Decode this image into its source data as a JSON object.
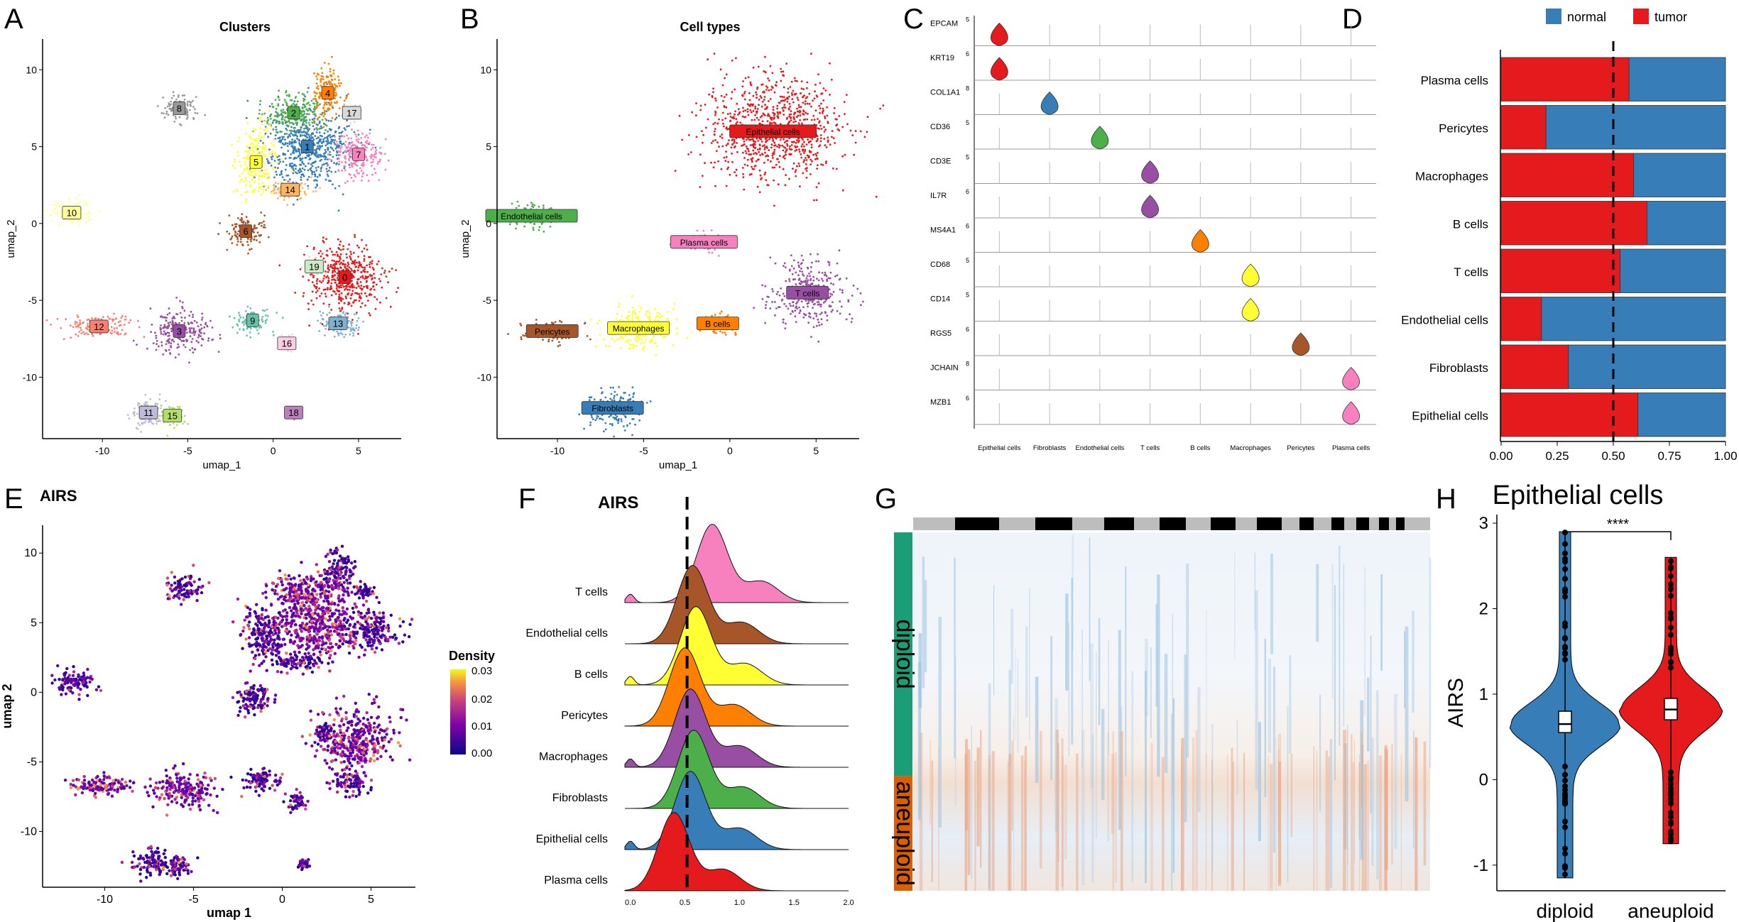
{
  "figure": {
    "panel_letters": [
      "A",
      "B",
      "C",
      "D",
      "E",
      "F",
      "G",
      "H"
    ]
  },
  "chart_data": [
    {
      "panel": "A",
      "type": "scatter",
      "title": "Clusters",
      "xlabel": "umap_1",
      "ylabel": "umap_2",
      "xlim": [
        -13.5,
        7.5
      ],
      "ylim": [
        -14,
        12
      ],
      "xticks": [
        -10,
        -5,
        0,
        5
      ],
      "yticks": [
        -10,
        -5,
        0,
        5,
        10
      ],
      "clusters": [
        {
          "label": "0",
          "color": "#e41a1c",
          "x": 4.2,
          "y": -3.5,
          "rx": 2.2,
          "ry": 2.2
        },
        {
          "label": "1",
          "color": "#377eb8",
          "x": 2.0,
          "y": 5.0,
          "rx": 2.5,
          "ry": 2.6
        },
        {
          "label": "2",
          "color": "#4daf4a",
          "x": 1.2,
          "y": 7.2,
          "rx": 1.8,
          "ry": 1.2
        },
        {
          "label": "3",
          "color": "#984ea3",
          "x": -5.5,
          "y": -7.0,
          "rx": 1.8,
          "ry": 1.3
        },
        {
          "label": "4",
          "color": "#ff7f00",
          "x": 3.2,
          "y": 8.5,
          "rx": 0.9,
          "ry": 1.6
        },
        {
          "label": "5",
          "color": "#ffff33",
          "x": -1.0,
          "y": 4.0,
          "rx": 1.2,
          "ry": 2.0
        },
        {
          "label": "6",
          "color": "#a65628",
          "x": -1.6,
          "y": -0.5,
          "rx": 1.1,
          "ry": 1.0
        },
        {
          "label": "7",
          "color": "#f781bf",
          "x": 5.0,
          "y": 4.5,
          "rx": 1.5,
          "ry": 1.4
        },
        {
          "label": "8",
          "color": "#999999",
          "x": -5.5,
          "y": 7.5,
          "rx": 1.0,
          "ry": 0.9
        },
        {
          "label": "9",
          "color": "#66c2a5",
          "x": -1.2,
          "y": -6.3,
          "rx": 1.1,
          "ry": 0.8
        },
        {
          "label": "10",
          "color": "#ffff99",
          "x": -11.8,
          "y": 0.7,
          "rx": 1.2,
          "ry": 0.8
        },
        {
          "label": "11",
          "color": "#bebada",
          "x": -7.3,
          "y": -12.3,
          "rx": 1.0,
          "ry": 0.9
        },
        {
          "label": "12",
          "color": "#fb8072",
          "x": -10.2,
          "y": -6.7,
          "rx": 2.0,
          "ry": 0.7
        },
        {
          "label": "13",
          "color": "#80b1d3",
          "x": 3.8,
          "y": -6.5,
          "rx": 1.1,
          "ry": 0.8
        },
        {
          "label": "14",
          "color": "#fdb462",
          "x": 1.0,
          "y": 2.2,
          "rx": 1.2,
          "ry": 0.6
        },
        {
          "label": "15",
          "color": "#b3de69",
          "x": -5.9,
          "y": -12.5,
          "rx": 0.8,
          "ry": 0.7
        },
        {
          "label": "16",
          "color": "#fccde5",
          "x": 0.8,
          "y": -7.8,
          "rx": 0.5,
          "ry": 0.6
        },
        {
          "label": "17",
          "color": "#d9d9d9",
          "x": 4.6,
          "y": 7.2,
          "rx": 0.6,
          "ry": 0.5
        },
        {
          "label": "18",
          "color": "#bc80bd",
          "x": 1.2,
          "y": -12.3,
          "rx": 0.3,
          "ry": 0.3
        },
        {
          "label": "19",
          "color": "#ccebc5",
          "x": 2.4,
          "y": -2.8,
          "rx": 0.6,
          "ry": 0.6
        }
      ]
    },
    {
      "panel": "B",
      "type": "scatter",
      "title": "Cell types",
      "xlabel": "umap_1",
      "ylabel": "umap_2",
      "xlim": [
        -13.5,
        7.5
      ],
      "ylim": [
        -14,
        12
      ],
      "xticks": [
        -10,
        -5,
        0,
        5
      ],
      "yticks": [
        -10,
        -5,
        0,
        5,
        10
      ],
      "clusters": [
        {
          "label": "Epithelial cells",
          "color": "#e41a1c",
          "x": 2.5,
          "y": 6.0,
          "rx": 4.0,
          "ry": 3.5
        },
        {
          "label": "Endothelial cells",
          "color": "#4daf4a",
          "x": -11.5,
          "y": 0.5,
          "rx": 1.3,
          "ry": 1.0
        },
        {
          "label": "Plasma cells",
          "color": "#f781bf",
          "x": -1.5,
          "y": -1.2,
          "rx": 1.3,
          "ry": 0.6
        },
        {
          "label": "T cells",
          "color": "#984ea3",
          "x": 4.5,
          "y": -4.5,
          "rx": 2.2,
          "ry": 2.2
        },
        {
          "label": "B cells",
          "color": "#ff7f00",
          "x": -0.7,
          "y": -6.5,
          "rx": 1.0,
          "ry": 0.8
        },
        {
          "label": "Macrophages",
          "color": "#ffff33",
          "x": -5.3,
          "y": -6.8,
          "rx": 2.2,
          "ry": 1.4
        },
        {
          "label": "Pericytes",
          "color": "#a65628",
          "x": -10.3,
          "y": -7.0,
          "rx": 1.8,
          "ry": 0.7
        },
        {
          "label": "Fibroblasts",
          "color": "#377eb8",
          "x": -6.8,
          "y": -12.0,
          "rx": 1.6,
          "ry": 1.3
        }
      ]
    },
    {
      "panel": "C",
      "type": "violin",
      "genes": [
        "EPCAM",
        "KRT19",
        "COL1A1",
        "CD36",
        "CD3E",
        "IL7R",
        "MS4A1",
        "CD68",
        "CD14",
        "RGS5",
        "JCHAIN",
        "MZB1"
      ],
      "gene_max": [
        5,
        6,
        8,
        5,
        5,
        6,
        6,
        5,
        5,
        6,
        8,
        6
      ],
      "cell_types": [
        "Epithelial cells",
        "Fibroblasts",
        "Endothelial cells",
        "T cells",
        "B cells",
        "Macrophages",
        "Pericytes",
        "Plasma cells"
      ],
      "gene_colors": [
        "#e41a1c",
        "#e41a1c",
        "#377eb8",
        "#4daf4a",
        "#984ea3",
        "#984ea3",
        "#ff7f00",
        "#ffff33",
        "#ffff33",
        "#a65628",
        "#f781bf",
        "#f781bf"
      ],
      "expressing_column": [
        0,
        0,
        1,
        2,
        3,
        3,
        4,
        5,
        5,
        6,
        7,
        7
      ]
    },
    {
      "panel": "D",
      "type": "bar",
      "orientation": "horizontal",
      "stacked": true,
      "categories": [
        "Plasma cells",
        "Pericytes",
        "Macrophages",
        "B cells",
        "T cells",
        "Endothelial cells",
        "Fibroblasts",
        "Epithelial cells"
      ],
      "series": [
        {
          "name": "tumor",
          "color": "#e41a1c",
          "values": [
            0.57,
            0.2,
            0.59,
            0.65,
            0.53,
            0.18,
            0.3,
            0.61
          ]
        },
        {
          "name": "normal",
          "color": "#377eb8",
          "values": [
            0.43,
            0.8,
            0.41,
            0.35,
            0.47,
            0.82,
            0.7,
            0.39
          ]
        }
      ],
      "legend": [
        "normal",
        "tumor"
      ],
      "xlim": [
        0,
        1
      ],
      "xticks": [
        "0.00",
        "0.25",
        "0.50",
        "0.75",
        "1.00"
      ],
      "reference_line": 0.5
    },
    {
      "panel": "E",
      "type": "scatter",
      "title": "AIRS",
      "xlabel": "umap 1",
      "ylabel": "umap 2",
      "xlim": [
        -13.5,
        7.5
      ],
      "ylim": [
        -14,
        12
      ],
      "xticks": [
        -10,
        -5,
        0,
        5
      ],
      "yticks": [
        -10,
        -5,
        0,
        5,
        10
      ],
      "legend_title": "Density",
      "legend_ticks": [
        "0.03",
        "0.02",
        "0.01",
        "0.00"
      ]
    },
    {
      "panel": "F",
      "type": "area",
      "title": "AIRS",
      "categories": [
        "Plasma cells",
        "Epithelial cells",
        "Fibroblasts",
        "Macrophages",
        "Pericytes",
        "B cells",
        "Endothelial cells",
        "T cells"
      ],
      "peaks": [
        0.4,
        0.55,
        0.58,
        0.55,
        0.5,
        0.6,
        0.57,
        0.75
      ],
      "colors": [
        "#e41a1c",
        "#377eb8",
        "#4daf4a",
        "#984ea3",
        "#ff7f00",
        "#ffff33",
        "#a65628",
        "#f781bf"
      ],
      "xlim": [
        -0.05,
        2.0
      ],
      "xticks": [
        "0.0",
        "0.5",
        "1.0",
        "1.5",
        "2.0"
      ],
      "reference_line": 0.52
    },
    {
      "panel": "G",
      "type": "heatmap",
      "row_groups": [
        {
          "label": "diploid",
          "color": "#1b9e77",
          "fraction": 0.68
        },
        {
          "label": "aneuploid",
          "color": "#d95f02",
          "fraction": 0.32
        }
      ],
      "chromosome_bar": [
        "#bdbdbd",
        "#000000"
      ]
    },
    {
      "panel": "H",
      "type": "violin",
      "title": "Epithelial cells",
      "categories": [
        "diploid",
        "aneuploid"
      ],
      "colors": [
        "#377eb8",
        "#e41a1c"
      ],
      "medians": [
        0.65,
        0.82
      ],
      "q1": [
        0.55,
        0.7
      ],
      "q3": [
        0.8,
        0.95
      ],
      "ylabel": "AIRS",
      "ylim": [
        -1.3,
        3.1
      ],
      "yticks": [
        "-1",
        "0",
        "1",
        "2",
        "3"
      ],
      "significance": "****"
    }
  ]
}
